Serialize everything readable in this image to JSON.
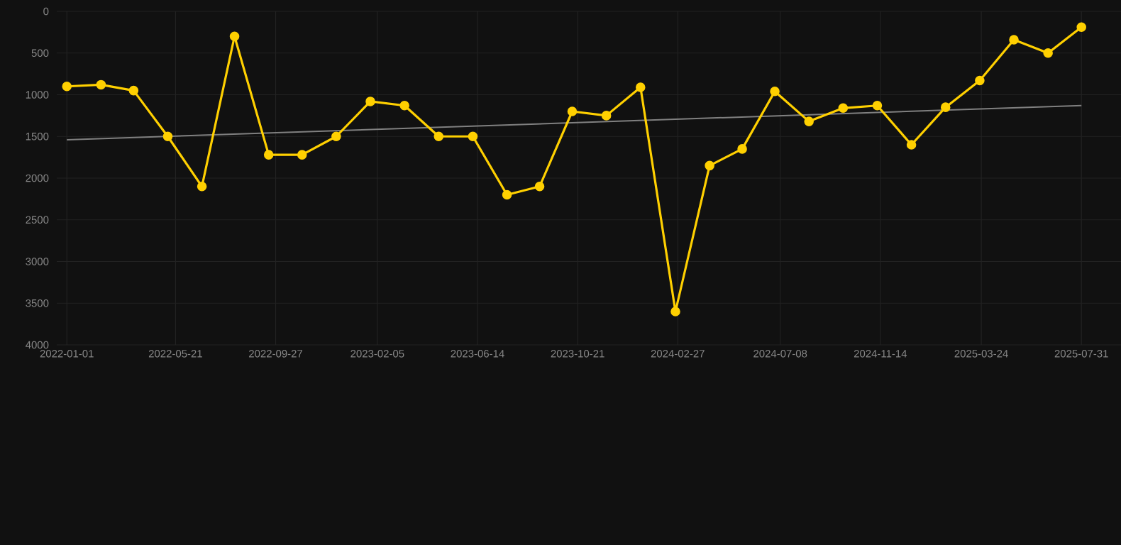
{
  "chart_data": {
    "type": "line",
    "x": [
      "2022-01-01",
      "2022-02-14",
      "2022-03-28",
      "2022-05-11",
      "2022-06-24",
      "2022-08-05",
      "2022-09-18",
      "2022-10-31",
      "2022-12-14",
      "2023-01-27",
      "2023-03-12",
      "2023-04-25",
      "2023-06-08",
      "2023-07-22",
      "2023-09-02",
      "2023-10-14",
      "2023-11-27",
      "2024-01-10",
      "2024-02-24",
      "2024-04-08",
      "2024-05-20",
      "2024-07-01",
      "2024-08-14",
      "2024-09-27",
      "2024-11-10",
      "2024-12-24",
      "2025-02-06",
      "2025-03-22",
      "2025-05-05",
      "2025-06-18",
      "2025-07-31"
    ],
    "series": [
      {
        "color": "#ffd000",
        "marker": "circle",
        "values": [
          900,
          880,
          950,
          1500,
          2100,
          300,
          1720,
          1720,
          1500,
          1080,
          1130,
          1500,
          1500,
          2200,
          2100,
          1200,
          1250,
          910,
          3600,
          1850,
          1650,
          960,
          1320,
          1160,
          1130,
          1600,
          1150,
          830,
          340,
          500,
          190
        ]
      },
      {
        "type": "line",
        "color": "#808080",
        "marker": "none",
        "x": [
          "2022-01-01",
          "2025-07-31"
        ],
        "values": [
          1540,
          1130
        ]
      }
    ],
    "xlim": [
      "2021-12-19",
      "2025-09-20"
    ],
    "ylim": [
      4000,
      0
    ],
    "xticks": [
      "2022-01-01",
      "2022-05-21",
      "2022-09-27",
      "2023-02-05",
      "2023-06-14",
      "2023-10-21",
      "2024-02-27",
      "2024-07-08",
      "2024-11-14",
      "2025-03-24",
      "2025-07-31"
    ],
    "yticks": [
      0,
      500,
      1000,
      1500,
      2000,
      2500,
      3000,
      3500,
      4000
    ],
    "grid": true,
    "line_style": "solid"
  }
}
